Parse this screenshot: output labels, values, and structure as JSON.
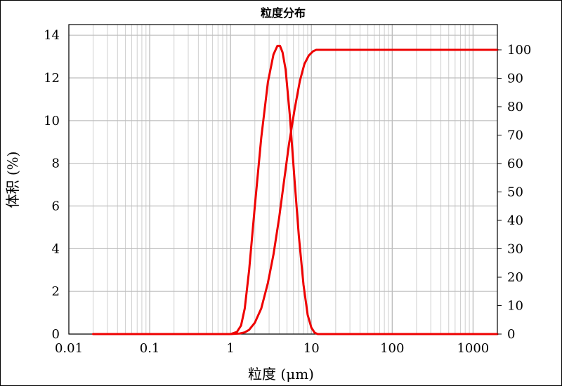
{
  "chart_data": {
    "type": "line",
    "title": "粒度分布",
    "xlabel": "粒度 (μm)",
    "ylabel_left": "体积 (%)",
    "x_scale": "log",
    "xlim": [
      0.01,
      2000
    ],
    "ylim_left": [
      0,
      14.5
    ],
    "ylim_right": [
      0,
      100
    ],
    "x_ticks": [
      0.01,
      0.1,
      1,
      10,
      100,
      1000
    ],
    "x_tick_labels": [
      "0.01",
      "0.1",
      "1",
      "10",
      "100",
      "1000"
    ],
    "y_left_ticks": [
      0,
      2,
      4,
      6,
      8,
      10,
      12,
      14
    ],
    "y_left_tick_labels": [
      "0",
      "2",
      "4",
      "6",
      "8",
      "10",
      "12",
      "14"
    ],
    "y_right_ticks": [
      0,
      10,
      20,
      30,
      40,
      50,
      60,
      70,
      80,
      90,
      100
    ],
    "y_right_tick_labels": [
      "0",
      "10",
      "20",
      "30",
      "40",
      "50",
      "60",
      "70",
      "80",
      "90",
      "100"
    ],
    "grid": true,
    "line_color": "#ee0000",
    "series": [
      {
        "axis": "left",
        "x": [
          0.02,
          1.0,
          1.2,
          1.35,
          1.5,
          1.7,
          2.0,
          2.4,
          2.9,
          3.4,
          3.8,
          4.1,
          4.4,
          4.8,
          5.4,
          6.2,
          7.0,
          8.0,
          9.0,
          10.0,
          11.0,
          12.0,
          14.0,
          2000
        ],
        "y": [
          0,
          0,
          0.1,
          0.4,
          1.2,
          3.0,
          6.0,
          9.2,
          11.8,
          13.1,
          13.5,
          13.5,
          13.2,
          12.4,
          10.3,
          7.2,
          4.6,
          2.3,
          0.9,
          0.3,
          0.06,
          0,
          0,
          0
        ]
      },
      {
        "axis": "right",
        "x": [
          0.02,
          1.0,
          1.3,
          1.5,
          1.7,
          2.0,
          2.4,
          2.9,
          3.4,
          4.0,
          4.6,
          5.3,
          6.2,
          7.2,
          8.2,
          9.3,
          10.5,
          11.5,
          13.0,
          2000
        ],
        "y": [
          0,
          0,
          0.2,
          0.6,
          1.5,
          4.0,
          9.0,
          18.0,
          28.0,
          41.0,
          54.0,
          67.0,
          79.0,
          89.0,
          95.0,
          98.0,
          99.5,
          100.0,
          100.0,
          100.0
        ]
      }
    ]
  }
}
